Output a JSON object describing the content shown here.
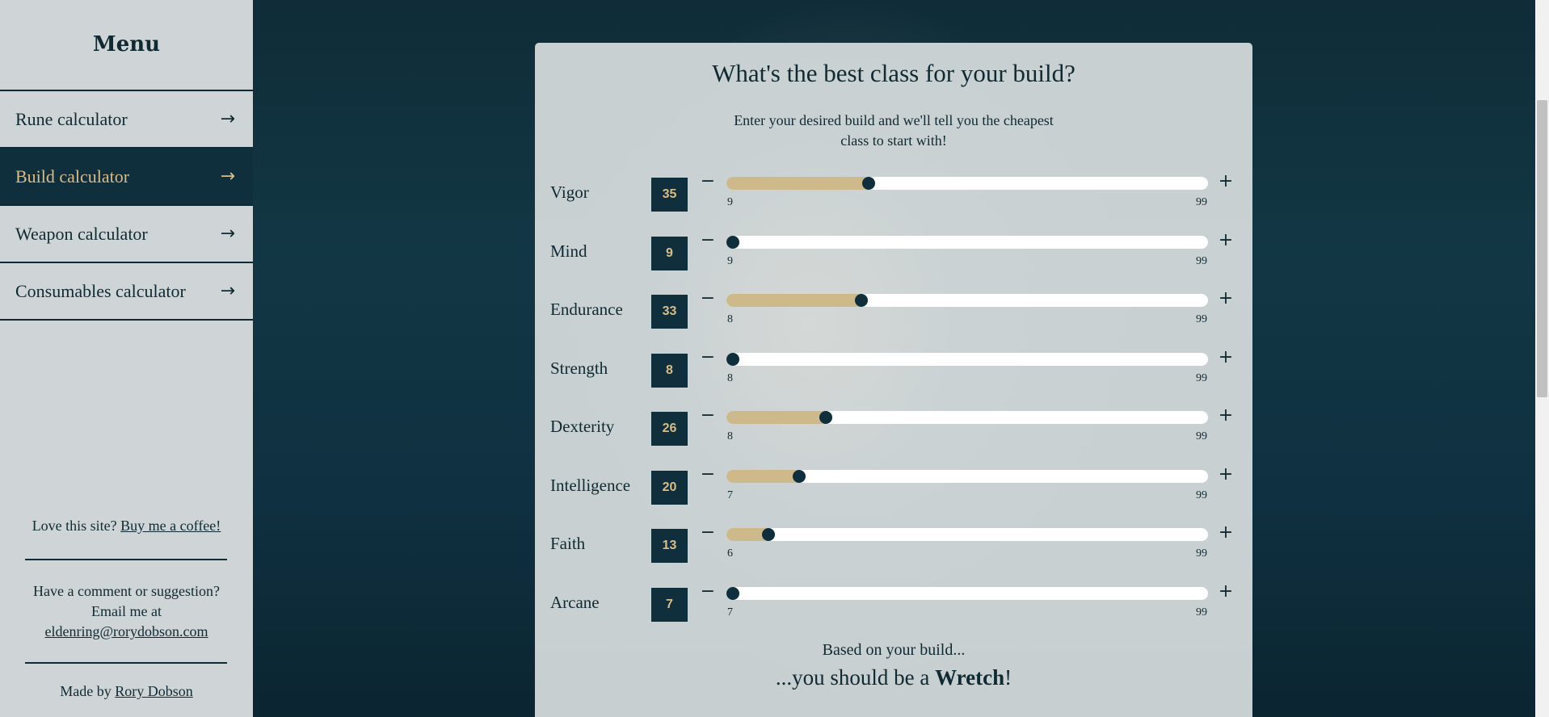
{
  "sidebar": {
    "title": "Menu",
    "items": [
      {
        "label": "Rune calculator",
        "active": false
      },
      {
        "label": "Build calculator",
        "active": true
      },
      {
        "label": "Weapon calculator",
        "active": false
      },
      {
        "label": "Consumables calculator",
        "active": false
      }
    ],
    "arrow": "→",
    "coffee_text": "Love this site?",
    "coffee_link": "Buy me a coffee!",
    "comment_line1": "Have a comment or suggestion?",
    "comment_line2": "Email me at",
    "email": "eldenring@rorydobson.com",
    "madeby_text": "Made by",
    "madeby_link": "Rory Dobson"
  },
  "card": {
    "title": "What's the best class for your build?",
    "subtitle": "Enter your desired build and we'll tell you the cheapest class to start with!",
    "minus": "−",
    "plus": "+",
    "stats": [
      {
        "name": "Vigor",
        "value": 35,
        "min": 9,
        "max": 99
      },
      {
        "name": "Mind",
        "value": 9,
        "min": 9,
        "max": 99
      },
      {
        "name": "Endurance",
        "value": 33,
        "min": 8,
        "max": 99
      },
      {
        "name": "Strength",
        "value": 8,
        "min": 8,
        "max": 99
      },
      {
        "name": "Dexterity",
        "value": 26,
        "min": 8,
        "max": 99
      },
      {
        "name": "Intelligence",
        "value": 20,
        "min": 7,
        "max": 99
      },
      {
        "name": "Faith",
        "value": 13,
        "min": 6,
        "max": 99
      },
      {
        "name": "Arcane",
        "value": 7,
        "min": 7,
        "max": 99
      }
    ],
    "based_text": "Based on your build...",
    "result_prefix": "...you should be a",
    "result_class": "Wretch",
    "result_suffix": "!"
  },
  "colors": {
    "dark": "#0f2f3c",
    "gold": "#d9bc86",
    "fill": "#cdb98a"
  }
}
